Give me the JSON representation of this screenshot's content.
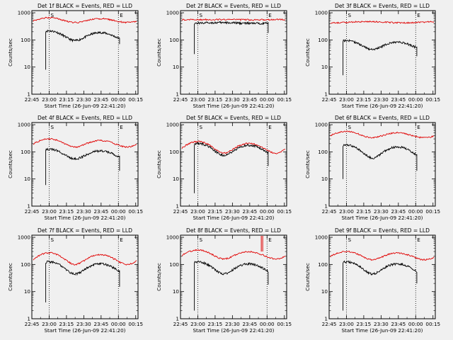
{
  "page": {
    "background": "#f0f0f0"
  },
  "colors": {
    "events": "#000000",
    "lld": "#e00000",
    "axis": "#000000"
  },
  "common": {
    "ylabel": "Counts/sec",
    "xlabel": "Start Time (26-Jun-09 22:41:20)",
    "xticks": [
      "22:45",
      "23:00",
      "23:15",
      "23:30",
      "23:45",
      "00:00",
      "00:15"
    ],
    "yticks": [
      "1",
      "10",
      "100",
      "1000"
    ],
    "ylim": [
      1,
      1200
    ],
    "yscale": "log",
    "markers": [
      "S",
      "E"
    ],
    "dotted_lines_at": [
      "23:00",
      "00:00"
    ]
  },
  "chart_data": [
    {
      "type": "line",
      "title": "Det 1f BLACK = Events, RED = LLD",
      "lld_shape": "wave",
      "lld_base": 440,
      "lld_amp": 220,
      "ev_shape": "wave",
      "ev_base": 95,
      "ev_amp": 120,
      "start_drop": 8,
      "ev_end": 70,
      "series": [
        {
          "name": "Events"
        },
        {
          "name": "LLD"
        }
      ]
    },
    {
      "type": "line",
      "title": "Det 2f BLACK = Events, RED = LLD",
      "lld_shape": "flat",
      "lld_base": 560,
      "lld_amp": 40,
      "ev_shape": "flat",
      "ev_base": 420,
      "ev_amp": 60,
      "start_drop": 30,
      "ev_end": 180,
      "series": [
        {
          "name": "Events"
        },
        {
          "name": "LLD"
        }
      ]
    },
    {
      "type": "line",
      "title": "Det 3f BLACK = Events, RED = LLD",
      "lld_shape": "flat",
      "lld_base": 450,
      "lld_amp": 120,
      "ev_shape": "wave",
      "ev_base": 45,
      "ev_amp": 50,
      "start_drop": 5,
      "ev_end": 25,
      "series": [
        {
          "name": "Events"
        },
        {
          "name": "LLD"
        }
      ]
    },
    {
      "type": "line",
      "title": "Det 4f BLACK = Events, RED = LLD",
      "lld_shape": "wave",
      "lld_base": 150,
      "lld_amp": 150,
      "ev_shape": "wave",
      "ev_base": 55,
      "ev_amp": 70,
      "start_drop": 6,
      "ev_end": 20,
      "series": [
        {
          "name": "Events"
        },
        {
          "name": "LLD"
        }
      ]
    },
    {
      "type": "line",
      "title": "Det 5f BLACK = Events, RED = LLD",
      "lld_shape": "wave",
      "lld_base": 90,
      "lld_amp": 150,
      "ev_shape": "wave",
      "ev_base": 75,
      "ev_amp": 130,
      "start_drop": 3,
      "ev_end": 30,
      "series": [
        {
          "name": "Events"
        },
        {
          "name": "LLD"
        }
      ]
    },
    {
      "type": "line",
      "title": "Det 6f BLACK = Events, RED = LLD",
      "lld_shape": "wave",
      "lld_base": 330,
      "lld_amp": 230,
      "ev_shape": "wave",
      "ev_base": 60,
      "ev_amp": 120,
      "start_drop": 10,
      "ev_end": 20,
      "series": [
        {
          "name": "Events"
        },
        {
          "name": "LLD"
        }
      ]
    },
    {
      "type": "line",
      "title": "Det 7f BLACK = Events, RED = LLD",
      "lld_shape": "wave",
      "lld_base": 100,
      "lld_amp": 170,
      "ev_shape": "wave",
      "ev_base": 45,
      "ev_amp": 80,
      "start_drop": 4,
      "ev_end": 15,
      "series": [
        {
          "name": "Events"
        },
        {
          "name": "LLD"
        }
      ]
    },
    {
      "type": "line",
      "title": "Det 8f BLACK = Events, RED = LLD",
      "lld_shape": "wave",
      "lld_base": 160,
      "lld_amp": 180,
      "ev_shape": "wave",
      "ev_base": 45,
      "ev_amp": 80,
      "start_drop": 2,
      "ev_end": 18,
      "spike": true,
      "series": [
        {
          "name": "Events"
        },
        {
          "name": "LLD"
        }
      ]
    },
    {
      "type": "line",
      "title": "Det 9f BLACK = Events, RED = LLD",
      "lld_shape": "wave",
      "lld_base": 150,
      "lld_amp": 150,
      "ev_shape": "wave",
      "ev_base": 45,
      "ev_amp": 80,
      "start_drop": 2,
      "ev_end": 20,
      "series": [
        {
          "name": "Events"
        },
        {
          "name": "LLD"
        }
      ]
    }
  ]
}
